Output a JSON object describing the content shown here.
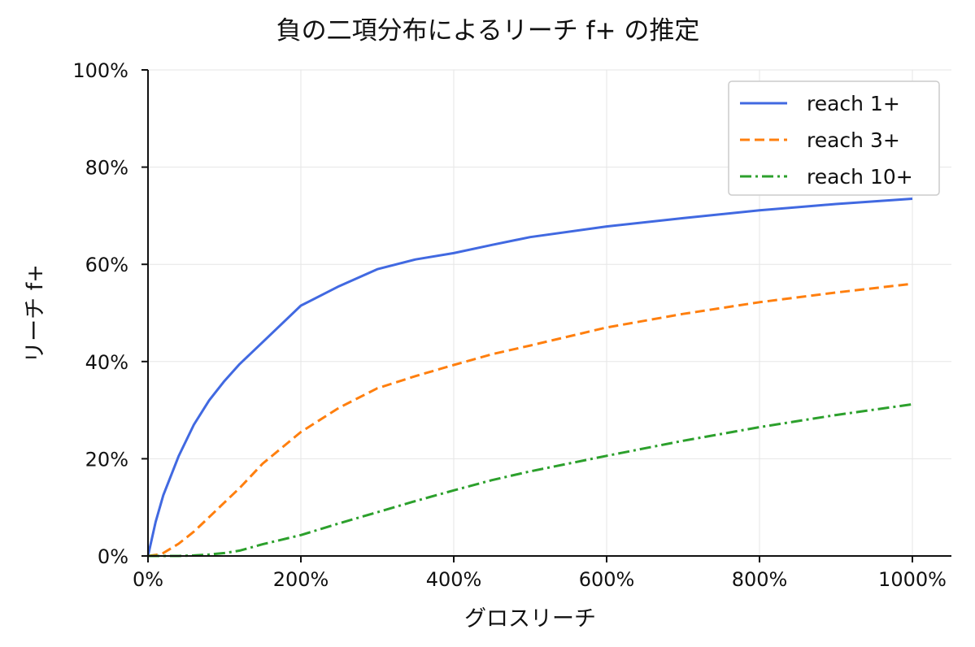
{
  "chart_data": {
    "type": "line",
    "title": "負の二項分布によるリーチ f+ の推定",
    "xlabel": "グロスリーチ",
    "ylabel": "リーチ f+",
    "xlim": [
      0,
      1000
    ],
    "ylim": [
      0,
      100
    ],
    "x_unit": "%",
    "y_unit": "%",
    "xticks": [
      0,
      200,
      400,
      600,
      800,
      1000
    ],
    "xtick_labels": [
      "0%",
      "200%",
      "400%",
      "600%",
      "800%",
      "1000%"
    ],
    "yticks": [
      0,
      20,
      40,
      60,
      80,
      100
    ],
    "ytick_labels": [
      "0%",
      "20%",
      "40%",
      "60%",
      "80%",
      "100%"
    ],
    "grid": true,
    "legend_position": "top-right",
    "x": [
      0,
      10,
      20,
      40,
      60,
      80,
      100,
      120,
      150,
      200,
      250,
      300,
      350,
      400,
      450,
      500,
      600,
      700,
      800,
      900,
      1000
    ],
    "series": [
      {
        "name": "reach 1+",
        "color": "#4169e1",
        "dash": "solid",
        "values": [
          0,
          7,
          12.5,
          20.5,
          27,
          32,
          36,
          39.5,
          44,
          51.5,
          55.5,
          59,
          61,
          62.3,
          64,
          65.6,
          67.8,
          69.5,
          71.1,
          72.4,
          73.5
        ]
      },
      {
        "name": "reach 3+",
        "color": "#ff7f0e",
        "dash": "dashed",
        "values": [
          0,
          0.2,
          0.6,
          2.5,
          5,
          8,
          11,
          14,
          19,
          25.5,
          30.5,
          34.5,
          37,
          39.3,
          41.5,
          43.3,
          47,
          49.8,
          52.2,
          54.2,
          56
        ]
      },
      {
        "name": "reach 10+",
        "color": "#2ca02c",
        "dash": "dashdot",
        "values": [
          0,
          0,
          0,
          0,
          0.1,
          0.3,
          0.6,
          1.1,
          2.4,
          4.3,
          6.7,
          9,
          11.3,
          13.5,
          15.6,
          17.4,
          20.6,
          23.7,
          26.5,
          29,
          31.2
        ]
      }
    ]
  }
}
